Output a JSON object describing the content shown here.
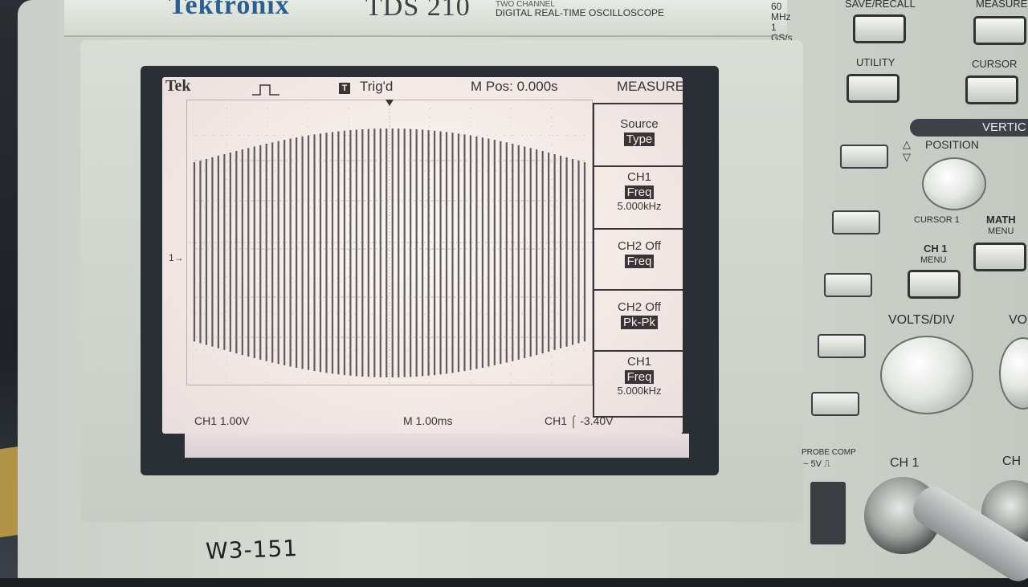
{
  "brand": "Tektronix",
  "model": {
    "name": "TDS 210",
    "line1": "TWO CHANNEL",
    "line2": "DIGITAL REAL-TIME OSCILLOSCOPE",
    "spec1": "60 MHz",
    "spec2": "1 GS/s"
  },
  "screen": {
    "header": {
      "logo": "Tek",
      "trigger_icon": "T",
      "trigger_status": "Trig'd",
      "position": "M Pos: 0.000s",
      "menu_title": "MEASURE"
    },
    "footer": {
      "ch1_scale": "CH1  1.00V",
      "time_scale": "M 1.00ms",
      "trigger": "CH1  ⌠  -3.40V"
    },
    "ch1_marker": "1→",
    "menu": [
      {
        "label": "Source",
        "highlight": "Type",
        "value": ""
      },
      {
        "label": "CH1",
        "highlight": "Freq",
        "value": "5.000kHz"
      },
      {
        "label": "CH2 Off",
        "highlight": "Freq",
        "value": ""
      },
      {
        "label": "CH2 Off",
        "highlight": "Pk-Pk",
        "value": ""
      },
      {
        "label": "CH1",
        "highlight": "Freq",
        "value": "5.000kHz"
      }
    ]
  },
  "panel": {
    "save_recall": "SAVE/RECALL",
    "measure": "MEASURE",
    "utility": "UTILITY",
    "cursor": "CURSOR",
    "vertical": "VERTIC",
    "position": "POSITION",
    "cursor1": "CURSOR 1",
    "math": "MATH",
    "math_menu": "MENU",
    "ch1": "CH 1",
    "ch1_menu": "MENU",
    "volts_div": "VOLTS/DIV",
    "volts_div_2": "VO",
    "probe_comp": "PROBE COMP",
    "probe_comp_2": "~ 5V ⎍",
    "ch1_input": "CH 1",
    "ch2_input": "CH"
  },
  "sticker": "W3-151",
  "waveform": {
    "type": "am_pulse_train",
    "pulse_count": 66,
    "color": "#5e5a60"
  }
}
